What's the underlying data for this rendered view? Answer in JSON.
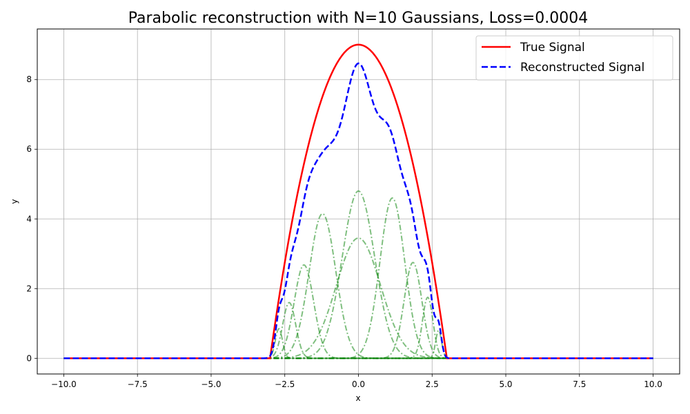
{
  "chart_data": {
    "type": "line",
    "title": "Parabolic reconstruction with N=10 Gaussians, Loss=0.0004",
    "xlabel": "x",
    "ylabel": "y",
    "xlim": [
      -10.9,
      10.9
    ],
    "ylim": [
      -0.45,
      9.45
    ],
    "xticks": [
      -10.0,
      -7.5,
      -5.0,
      -2.5,
      0.0,
      2.5,
      5.0,
      7.5,
      10.0
    ],
    "xtick_labels": [
      "−10.0",
      "−7.5",
      "−5.0",
      "−2.5",
      "0.0",
      "2.5",
      "5.0",
      "7.5",
      "10.0"
    ],
    "yticks": [
      0,
      2,
      4,
      6,
      8
    ],
    "ytick_labels": [
      "0",
      "2",
      "4",
      "6",
      "8"
    ],
    "grid": true,
    "legend_position": "top-right",
    "x_domain": [
      -10,
      10
    ],
    "series": [
      {
        "name": "True Signal",
        "color": "#ff0000",
        "style": "solid",
        "function": "y = 9 - x^2 for |x| <= 3, else 0"
      },
      {
        "name": "Reconstructed Signal",
        "color": "#0000ff",
        "style": "dashed",
        "function": "sum of the 10 Gaussian components"
      }
    ],
    "components": {
      "color": "#008000",
      "style": "dash-dot",
      "opacity": 0.5,
      "items": [
        {
          "amplitude": 4.8,
          "center": 0.0,
          "sigma": 0.55
        },
        {
          "amplitude": 3.45,
          "center": 0.0,
          "sigma": 0.75
        },
        {
          "amplitude": 4.15,
          "center": -1.22,
          "sigma": 0.45
        },
        {
          "amplitude": 4.6,
          "center": 1.15,
          "sigma": 0.42
        },
        {
          "amplitude": 2.68,
          "center": -1.85,
          "sigma": 0.33
        },
        {
          "amplitude": 2.75,
          "center": 1.85,
          "sigma": 0.3
        },
        {
          "amplitude": 1.6,
          "center": -2.35,
          "sigma": 0.22
        },
        {
          "amplitude": 1.75,
          "center": 2.35,
          "sigma": 0.18
        },
        {
          "amplitude": 0.85,
          "center": -2.7,
          "sigma": 0.12
        },
        {
          "amplitude": 0.8,
          "center": 2.72,
          "sigma": 0.1
        }
      ]
    }
  }
}
